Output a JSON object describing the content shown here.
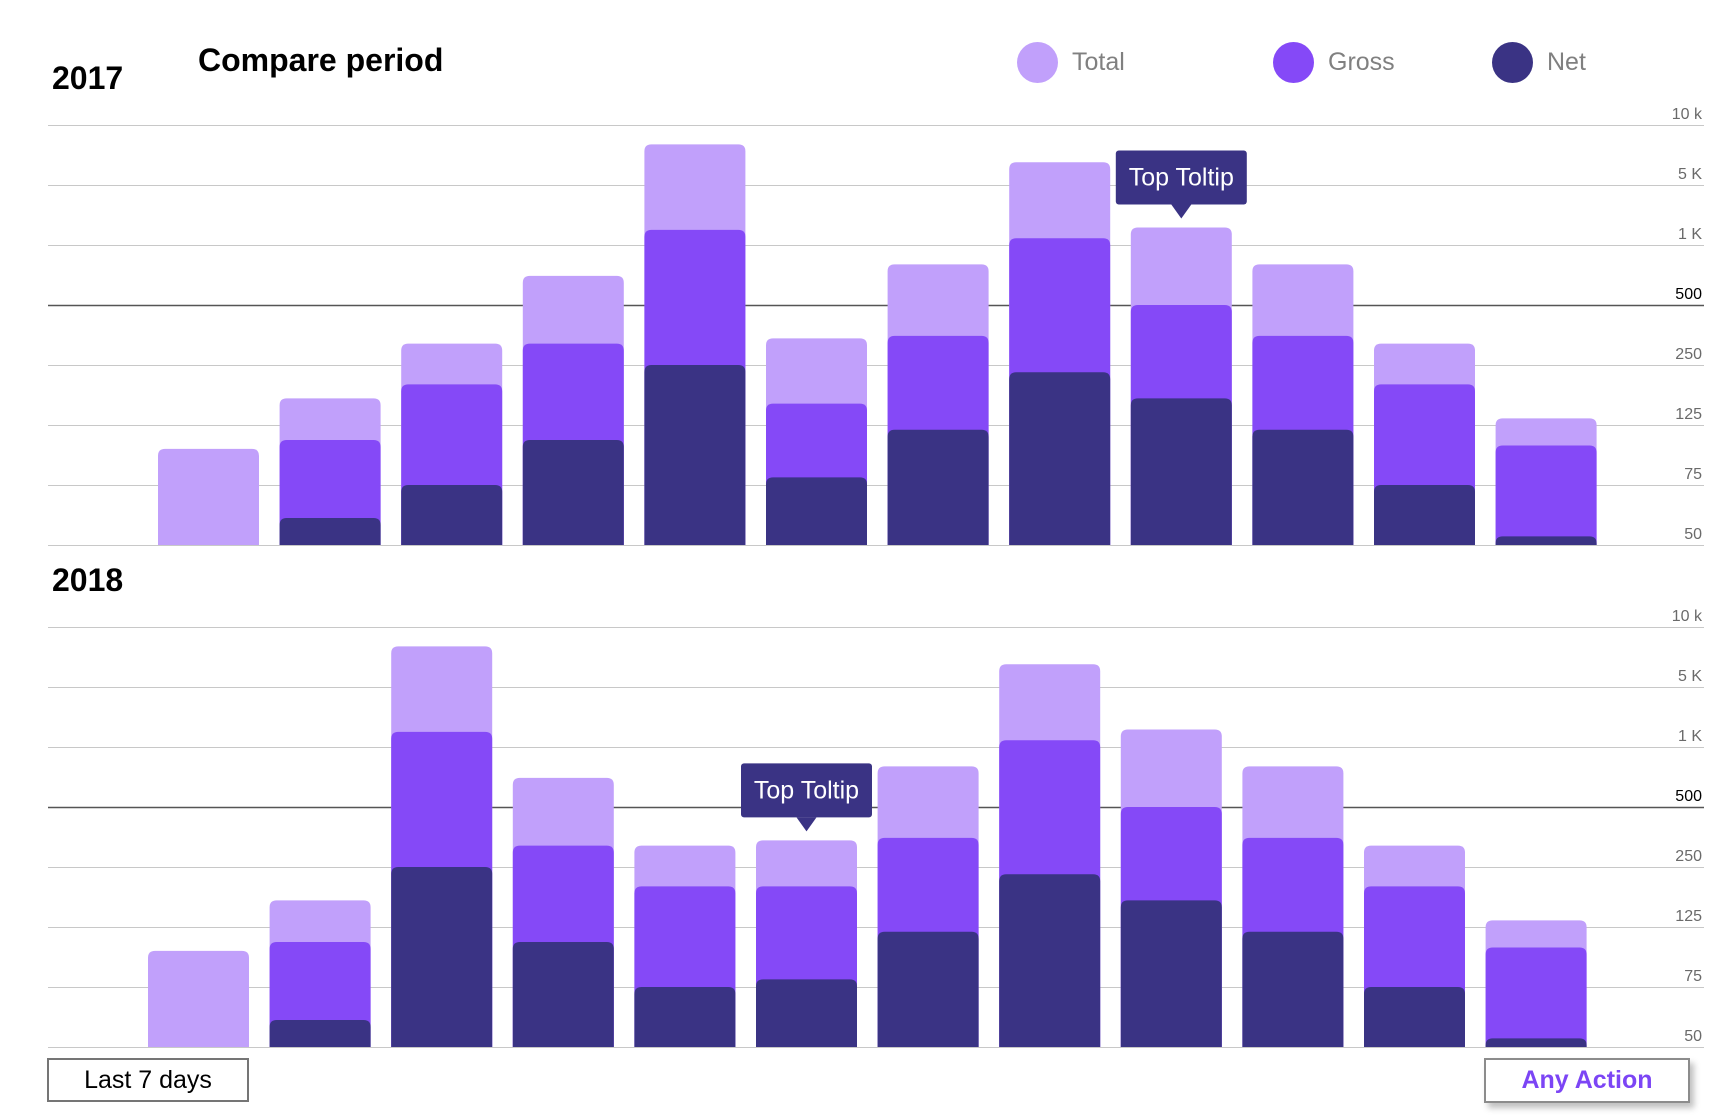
{
  "title": "Compare period",
  "legend": [
    {
      "label": "Total",
      "color": "#c1a0fb"
    },
    {
      "label": "Gross",
      "color": "#8549f7"
    },
    {
      "label": "Net",
      "color": "#3a3384"
    }
  ],
  "tooltip_color": "#3a3384",
  "controls": {
    "range_label": "Last 7 days",
    "action_label": "Any Action"
  },
  "chart_data": [
    {
      "type": "bar",
      "title": "2017",
      "stacked": true,
      "scale": "categorical-tick",
      "y_ticks": [
        "50",
        "75",
        "125",
        "250",
        "500",
        "1 K",
        "5 K",
        "10 k"
      ],
      "emphasized_tick": "500",
      "grid": true,
      "series": [
        {
          "name": "Total",
          "values": [
            102,
            170,
            320,
            700,
            8000,
            340,
            800,
            6500,
            1600,
            800,
            320,
            135
          ]
        },
        {
          "name": "Gross",
          "values": [
            50,
            110,
            200,
            320,
            1500,
            160,
            350,
            1200,
            500,
            350,
            200,
            105
          ]
        },
        {
          "name": "Net",
          "values": [
            28,
            60,
            75,
            110,
            250,
            80,
            120,
            230,
            170,
            120,
            75,
            53
          ]
        }
      ],
      "annotations": [
        {
          "text": "Top Toltip",
          "bar_index": 8
        }
      ]
    },
    {
      "type": "bar",
      "title": "2018",
      "stacked": true,
      "scale": "categorical-tick",
      "y_ticks": [
        "50",
        "75",
        "125",
        "250",
        "500",
        "1 K",
        "5 K",
        "10 k"
      ],
      "emphasized_tick": "500",
      "grid": true,
      "series": [
        {
          "name": "Total",
          "values": [
            102,
            170,
            8000,
            700,
            320,
            340,
            800,
            6500,
            1600,
            800,
            320,
            135
          ]
        },
        {
          "name": "Gross",
          "values": [
            50,
            110,
            1500,
            320,
            200,
            200,
            350,
            1200,
            500,
            350,
            200,
            105
          ]
        },
        {
          "name": "Net",
          "values": [
            28,
            60,
            250,
            110,
            75,
            80,
            120,
            230,
            170,
            120,
            75,
            53
          ]
        }
      ],
      "annotations": [
        {
          "text": "Top Toltip",
          "bar_index": 5
        }
      ]
    }
  ]
}
